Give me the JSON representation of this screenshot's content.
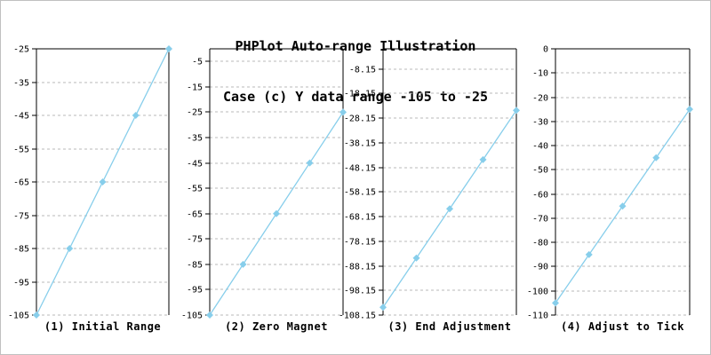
{
  "header": {
    "title_line1": "PHPlot Auto-range Illustration",
    "title_line2": "Case (c) Y data range -105 to -25"
  },
  "colors": {
    "data_line": "#87ceeb",
    "marker": "#87ceeb",
    "grid": "#b8b8b8",
    "axis": "#000000",
    "text": "#000000",
    "image_border": "#c0c0c0",
    "background": "#ffffff"
  },
  "chart_data": [
    {
      "type": "line",
      "title": "(1) Initial Range",
      "x": [
        1,
        2,
        3,
        4,
        5
      ],
      "y": [
        -105,
        -85,
        -65,
        -45,
        -25
      ],
      "ylim": [
        -105,
        -25
      ],
      "yticks": [
        -25,
        -35,
        -45,
        -55,
        -65,
        -75,
        -85,
        -95,
        -105
      ],
      "ytick_labels": [
        "-25",
        "-35",
        "-45",
        "-55",
        "-65",
        "-75",
        "-85",
        "-95",
        "-105"
      ],
      "grid": true,
      "legend": null,
      "marker": "diamond"
    },
    {
      "type": "line",
      "title": "(2) Zero Magnet",
      "x": [
        1,
        2,
        3,
        4,
        5
      ],
      "y": [
        -105,
        -85,
        -65,
        -45,
        -25
      ],
      "ylim": [
        -105,
        0
      ],
      "yticks": [
        -5,
        -15,
        -25,
        -35,
        -45,
        -55,
        -65,
        -75,
        -85,
        -95,
        -105
      ],
      "ytick_labels": [
        "-5",
        "-15",
        "-25",
        "-35",
        "-45",
        "-55",
        "-65",
        "-75",
        "-85",
        "-95",
        "-105"
      ],
      "grid": true,
      "legend": null,
      "marker": "diamond"
    },
    {
      "type": "line",
      "title": "(3) End Adjustment",
      "x": [
        1,
        2,
        3,
        4,
        5
      ],
      "y": [
        -105,
        -85,
        -65,
        -45,
        -25
      ],
      "ylim": [
        -108.15,
        0
      ],
      "yticks": [
        -8.15,
        -18.15,
        -28.15,
        -38.15,
        -48.15,
        -58.15,
        -68.15,
        -78.15,
        -88.15,
        -98.15,
        -108.15
      ],
      "ytick_labels": [
        "-8.15",
        "-18.15",
        "-28.15",
        "-38.15",
        "-48.15",
        "-58.15",
        "-68.15",
        "-78.15",
        "-88.15",
        "-98.15",
        "-108.15"
      ],
      "grid": true,
      "legend": null,
      "marker": "diamond"
    },
    {
      "type": "line",
      "title": "(4) Adjust to Tick",
      "x": [
        1,
        2,
        3,
        4,
        5
      ],
      "y": [
        -105,
        -85,
        -65,
        -45,
        -25
      ],
      "ylim": [
        -110,
        0
      ],
      "yticks": [
        0,
        -10,
        -20,
        -30,
        -40,
        -50,
        -60,
        -70,
        -80,
        -90,
        -100,
        -110
      ],
      "ytick_labels": [
        "0",
        "-10",
        "-20",
        "-30",
        "-40",
        "-50",
        "-60",
        "-70",
        "-80",
        "-90",
        "-100",
        "-110"
      ],
      "grid": true,
      "legend": null,
      "marker": "diamond"
    }
  ]
}
